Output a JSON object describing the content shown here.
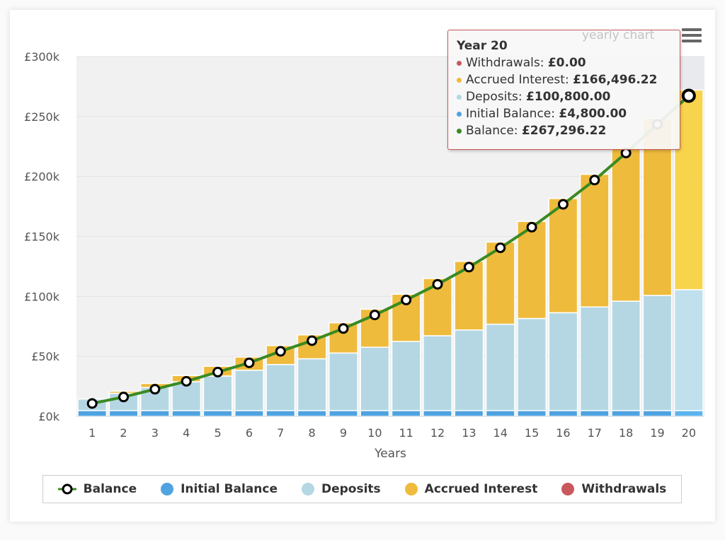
{
  "chart_data": {
    "type": "bar",
    "stacked": true,
    "xlabel": "Years",
    "ylabel": "",
    "ylim": [
      0,
      300000
    ],
    "y_ticks": [
      "£0k",
      "£50k",
      "£100k",
      "£150k",
      "£200k",
      "£250k",
      "£300k"
    ],
    "categories": [
      "1",
      "2",
      "3",
      "4",
      "5",
      "6",
      "7",
      "8",
      "9",
      "10",
      "11",
      "12",
      "13",
      "14",
      "15",
      "16",
      "17",
      "18",
      "19",
      "20"
    ],
    "grid": true,
    "legend_position": "bottom",
    "series": [
      {
        "name": "Initial Balance",
        "type": "bar",
        "color": "#4ea3e0",
        "values": [
          4800,
          4800,
          4800,
          4800,
          4800,
          4800,
          4800,
          4800,
          4800,
          4800,
          4800,
          4800,
          4800,
          4800,
          4800,
          4800,
          4800,
          4800,
          4800,
          4800
        ]
      },
      {
        "name": "Deposits",
        "type": "bar",
        "color": "#b5d7e4",
        "values": [
          9600,
          14400,
          19200,
          24000,
          28800,
          33600,
          38400,
          43200,
          48000,
          52800,
          57600,
          62400,
          67200,
          72000,
          76800,
          81600,
          86400,
          91200,
          96000,
          100800
        ]
      },
      {
        "name": "Accrued Interest",
        "type": "bar",
        "color": "#efbb3c",
        "values": [
          0,
          1700,
          3400,
          5200,
          8100,
          11000,
          15800,
          19900,
          25200,
          31700,
          39400,
          47700,
          57200,
          68500,
          80900,
          95200,
          110600,
          128400,
          147500,
          166496.22
        ]
      },
      {
        "name": "Withdrawals",
        "type": "bar",
        "color": "#c9585c",
        "values": [
          0,
          0,
          0,
          0,
          0,
          0,
          0,
          0,
          0,
          0,
          0,
          0,
          0,
          0,
          0,
          0,
          0,
          0,
          0,
          0
        ]
      },
      {
        "name": "Balance",
        "type": "line",
        "color": "#3a8a22",
        "values": [
          10700,
          16100,
          22600,
          29200,
          36900,
          44600,
          54200,
          63100,
          73200,
          84500,
          97000,
          110100,
          124400,
          140500,
          157700,
          176800,
          197000,
          219600,
          243500,
          267296.22
        ]
      }
    ],
    "highlighted_category": "20"
  },
  "header": {
    "faint_title": "yearly chart",
    "menu_icon": "hamburger-icon"
  },
  "tooltip": {
    "title": "Year 20",
    "rows": [
      {
        "label": "Withdrawals: ",
        "value": "£0.00",
        "color": "#c9585c"
      },
      {
        "label": "Accrued Interest: ",
        "value": "£166,496.22",
        "color": "#efbb3c"
      },
      {
        "label": "Deposits: ",
        "value": "£100,800.00",
        "color": "#b5d7e4"
      },
      {
        "label": "Initial Balance: ",
        "value": "£4,800.00",
        "color": "#4ea3e0"
      },
      {
        "label": "Balance: ",
        "value": "£267,296.22",
        "color": "#3a8a22"
      }
    ]
  },
  "legend": [
    "Balance",
    "Initial Balance",
    "Deposits",
    "Accrued Interest",
    "Withdrawals"
  ]
}
